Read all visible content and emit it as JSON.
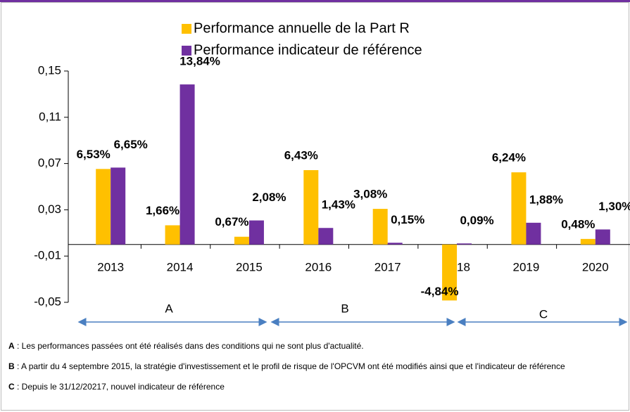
{
  "chart_data": {
    "type": "bar",
    "categories": [
      "2013",
      "2014",
      "2015",
      "2016",
      "2017",
      "2018",
      "2019",
      "2020"
    ],
    "series": [
      {
        "name": "Performance annuelle de la Part R",
        "color": "#ffc000",
        "values": [
          0.0653,
          0.0166,
          0.0067,
          0.0643,
          0.0308,
          -0.0484,
          0.0624,
          0.0048
        ],
        "value_labels": [
          "6,53%",
          "1,66%",
          "0,67%",
          "6,43%",
          "3,08%",
          "-4,84%",
          "6,24%",
          "0,48%"
        ]
      },
      {
        "name": "Performance indicateur de référence",
        "color": "#7030a0",
        "values": [
          0.0665,
          0.1384,
          0.0208,
          0.0143,
          0.0015,
          0.0009,
          0.0188,
          0.013
        ],
        "value_labels": [
          "6,65%",
          "13,84%",
          "2,08%",
          "1,43%",
          "0,15%",
          "0,09%",
          "1,88%",
          "1,30%"
        ]
      }
    ],
    "ylim": [
      -0.05,
      0.15
    ],
    "yticks": [
      {
        "value": -0.05,
        "label": "-0,05"
      },
      {
        "value": -0.01,
        "label": "-0,01"
      },
      {
        "value": 0.03,
        "label": "0,03"
      },
      {
        "value": 0.07,
        "label": "0,07"
      },
      {
        "value": 0.11,
        "label": "0,11"
      },
      {
        "value": 0.15,
        "label": "0,15"
      }
    ],
    "grid": false,
    "legend": "top",
    "periods": [
      "A",
      "B",
      "C"
    ],
    "footnotes": [
      {
        "key": "A",
        "text": " : Les performances passées ont été réalisés dans des conditions qui ne sont plus d'actualité."
      },
      {
        "key": "B",
        "text": " : A partir du 4 septembre 2015, la stratégie d'investissement et le profil de risque de l'OPCVM ont été modifiés ainsi que  et l'indicateur de référence"
      },
      {
        "key": "C",
        "text": " : Depuis le 31/12/20217, nouvel indicateur de référence"
      }
    ]
  }
}
